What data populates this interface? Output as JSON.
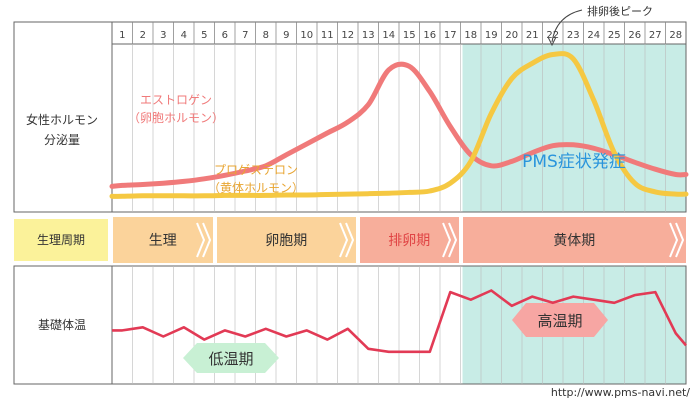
{
  "chart_data": {
    "type": "line",
    "days": [
      "1",
      "2",
      "3",
      "4",
      "5",
      "6",
      "7",
      "8",
      "9",
      "10",
      "11",
      "12",
      "13",
      "14",
      "15",
      "16",
      "17",
      "18",
      "19",
      "20",
      "21",
      "22",
      "23",
      "24",
      "25",
      "26",
      "27",
      "28"
    ],
    "hormone_panel": {
      "row_label_line1": "女性ホルモン",
      "row_label_line2": "分泌量",
      "series": [
        {
          "name_line1": "エストロゲン",
          "name_line2": "（卵胞ホルモン）",
          "color": "#f07a7a",
          "values": [
            25,
            27,
            30,
            34,
            40,
            48,
            58,
            70,
            95,
            120,
            145,
            170,
            210,
            290,
            298,
            240,
            160,
            95,
            70,
            80,
            100,
            116,
            118,
            110,
            95,
            78,
            62,
            50
          ]
        },
        {
          "name_line1": "プロゲステロン",
          "name_line2": "（黄体ホルモン）",
          "color": "#f5c842",
          "values": [
            0,
            1,
            1,
            1,
            1,
            2,
            2,
            2,
            3,
            3,
            4,
            5,
            6,
            7,
            9,
            12,
            30,
            80,
            190,
            270,
            305,
            325,
            315,
            220,
            100,
            30,
            10,
            5
          ]
        }
      ],
      "ylim": [
        -20,
        340
      ],
      "peak_annotation": "排卵後ピーク",
      "pms_label": "PMS症状発症",
      "pms_range_days": [
        18,
        28
      ],
      "pms_color": "#c8ece6"
    },
    "phase_row": {
      "row_label": "生理周期",
      "phases": [
        {
          "label": "生理",
          "start_day": 1,
          "end_day": 5,
          "color": "#fbd39b",
          "text_color": "#333333"
        },
        {
          "label": "卵胞期",
          "start_day": 6,
          "end_day": 12,
          "color": "#fbd39b",
          "text_color": "#333333"
        },
        {
          "label": "排卵期",
          "start_day": 13,
          "end_day": 17,
          "color": "#f7ae9b",
          "text_color": "#e04545"
        },
        {
          "label": "黄体期",
          "start_day": 18,
          "end_day": 28,
          "color": "#f7ae9b",
          "text_color": "#333333"
        }
      ]
    },
    "bbt_panel": {
      "row_label": "基礎体温",
      "color": "#e23a55",
      "values": [
        36.3,
        36.32,
        36.26,
        36.32,
        36.24,
        36.3,
        36.26,
        36.31,
        36.26,
        36.3,
        36.24,
        36.31,
        36.18,
        36.16,
        36.16,
        36.16,
        36.55,
        36.5,
        36.56,
        36.46,
        36.52,
        36.48,
        36.52,
        36.5,
        36.48,
        36.53,
        36.55,
        36.28
      ],
      "ylim": [
        35.95,
        36.72
      ],
      "low_label": "低温期",
      "high_label": "高温期",
      "low_color": "#c8f0d4",
      "high_color": "#f7a6a3",
      "teal_color": "#c8ece6"
    },
    "source_url": "http://www.pms-navi.net/"
  }
}
